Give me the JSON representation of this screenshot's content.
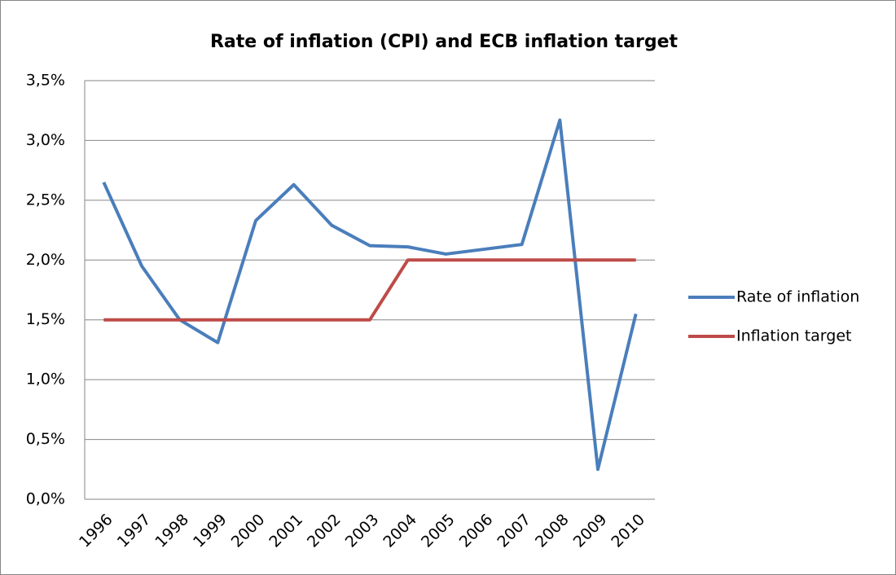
{
  "chart_data": {
    "type": "line",
    "title": "Rate of inflation (CPI) and ECB inflation target",
    "categories": [
      "1996",
      "1997",
      "1998",
      "1999",
      "2000",
      "2001",
      "2002",
      "2003",
      "2004",
      "2005",
      "2006",
      "2007",
      "2008",
      "2009",
      "2010"
    ],
    "series": [
      {
        "name": "Rate of inflation",
        "color": "#4a7ebb",
        "values": [
          2.65,
          1.95,
          1.5,
          1.31,
          2.33,
          2.63,
          2.29,
          2.12,
          2.11,
          2.05,
          2.09,
          2.13,
          3.17,
          0.25,
          1.55
        ]
      },
      {
        "name": "Inflation target",
        "color": "#be4b48",
        "values": [
          1.5,
          1.5,
          1.5,
          1.5,
          1.5,
          1.5,
          1.5,
          1.5,
          2.0,
          2.0,
          2.0,
          2.0,
          2.0,
          2.0,
          2.0
        ]
      }
    ],
    "ylim": [
      0,
      3.5
    ],
    "yticks": [
      {
        "value": 0,
        "label": "0,0%"
      },
      {
        "value": 0.5,
        "label": "0,5%"
      },
      {
        "value": 1,
        "label": "1,0%"
      },
      {
        "value": 1.5,
        "label": "1,5%"
      },
      {
        "value": 2,
        "label": "2,0%"
      },
      {
        "value": 2.5,
        "label": "2,5%"
      },
      {
        "value": 3,
        "label": "3,0%"
      },
      {
        "value": 3.5,
        "label": "3,5%"
      }
    ],
    "grid": true,
    "legend": "right"
  }
}
